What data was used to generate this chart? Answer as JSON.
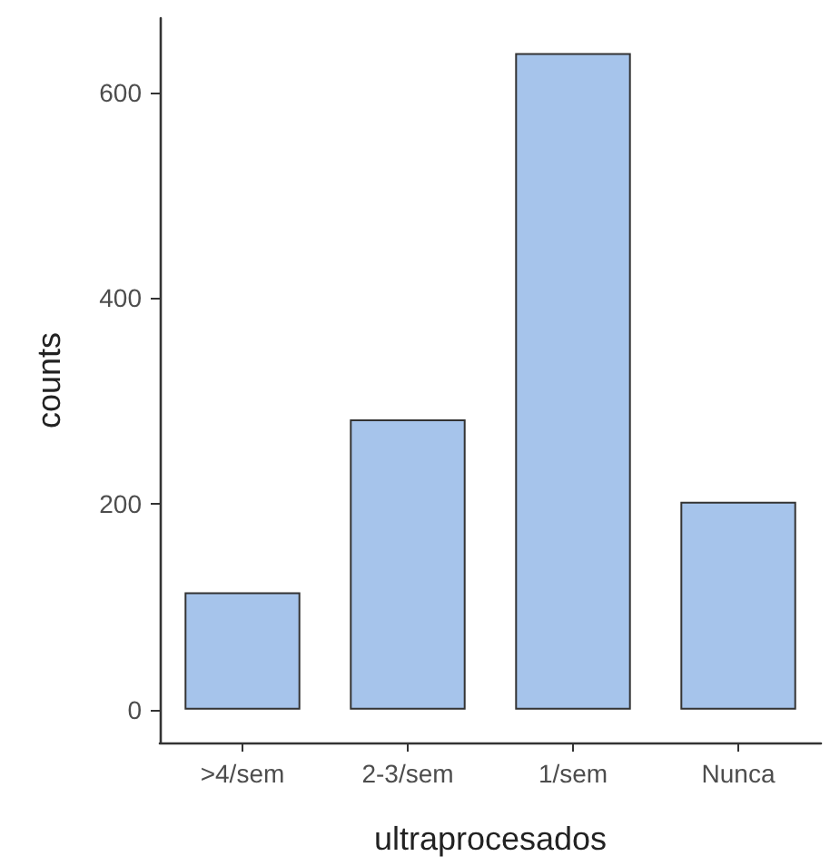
{
  "chart_data": {
    "type": "bar",
    "xlabel": "ultraprocesados",
    "ylabel": "counts",
    "categories": [
      ">4/sem",
      "2-3/sem",
      "1/sem",
      "Nunca"
    ],
    "values": [
      114,
      282,
      638,
      202
    ],
    "color": "#a6c4eb",
    "ylim": [
      -32,
      672
    ],
    "yticks": [
      0,
      200,
      400,
      600
    ],
    "grid": false
  }
}
